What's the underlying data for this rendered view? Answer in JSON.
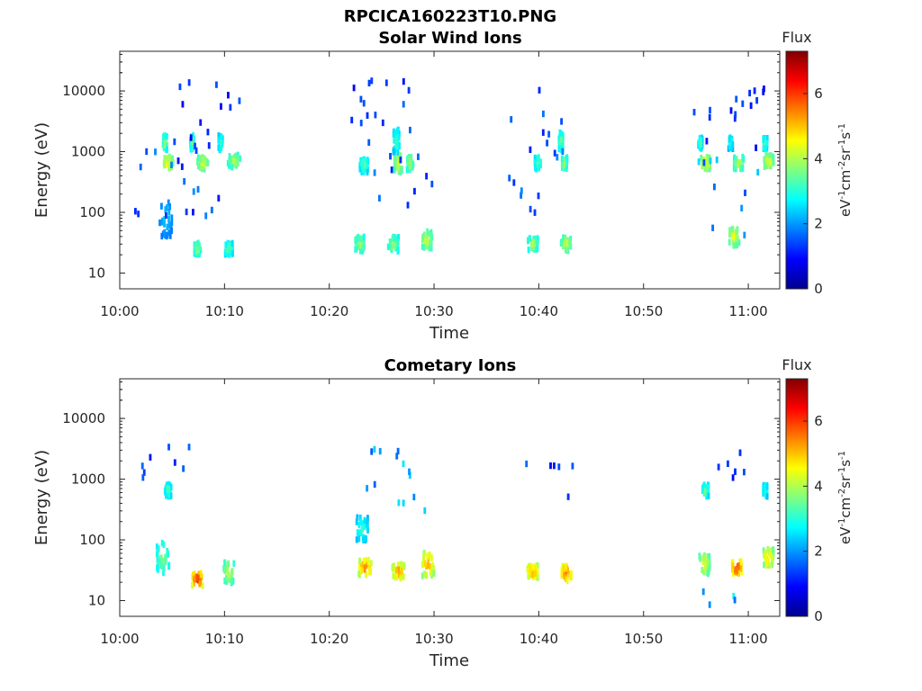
{
  "figure_title": "RPCICA160223T10.PNG",
  "chart_data": [
    {
      "type": "heatmap",
      "title": "Solar Wind Ions",
      "xlabel": "Time",
      "ylabel": "Energy (eV)",
      "x_range_minutes": [
        0,
        63
      ],
      "y_range": [
        5.5,
        45000
      ],
      "y_scale": "log",
      "x_ticks": [
        {
          "value": 0,
          "label": "10:00"
        },
        {
          "value": 10,
          "label": "10:10"
        },
        {
          "value": 20,
          "label": "10:20"
        },
        {
          "value": 30,
          "label": "10:30"
        },
        {
          "value": 40,
          "label": "10:40"
        },
        {
          "value": 50,
          "label": "10:50"
        },
        {
          "value": 60,
          "label": "11:00"
        }
      ],
      "y_ticks": [
        {
          "value": 10,
          "label": "10"
        },
        {
          "value": 100,
          "label": "100"
        },
        {
          "value": 1000,
          "label": "1000"
        },
        {
          "value": 10000,
          "label": "10000"
        }
      ],
      "colorbar": {
        "title": "Flux",
        "label": "eV-1cm-2sr-1s-1",
        "range": [
          0,
          7.3
        ],
        "ticks": [
          {
            "value": 0,
            "label": "0"
          },
          {
            "value": 2,
            "label": "2"
          },
          {
            "value": 4,
            "label": "4"
          },
          {
            "value": 6,
            "label": "6"
          }
        ]
      },
      "clusters": [
        {
          "t": 4.5,
          "e": 650,
          "v": 4.8,
          "w": 0.5,
          "h": 0.1
        },
        {
          "t": 7.8,
          "e": 650,
          "v": 4.5,
          "w": 0.5,
          "h": 0.1
        },
        {
          "t": 10.8,
          "e": 700,
          "v": 4.2,
          "w": 0.6,
          "h": 0.1
        },
        {
          "t": 4.2,
          "e": 1400,
          "v": 4.0,
          "w": 0.2,
          "h": 0.12
        },
        {
          "t": 6.8,
          "e": 1400,
          "v": 3.8,
          "w": 0.2,
          "h": 0.12
        },
        {
          "t": 9.5,
          "e": 1400,
          "v": 3.5,
          "w": 0.2,
          "h": 0.12
        },
        {
          "t": 7.3,
          "e": 25,
          "v": 4.0,
          "w": 0.3,
          "h": 0.1
        },
        {
          "t": 10.3,
          "e": 25,
          "v": 3.6,
          "w": 0.4,
          "h": 0.1
        },
        {
          "t": 4.3,
          "e": 80,
          "v": 2.5,
          "w": 0.6,
          "h": 0.3
        },
        {
          "t": 22.8,
          "e": 30,
          "v": 4.1,
          "w": 0.5,
          "h": 0.12
        },
        {
          "t": 26.0,
          "e": 30,
          "v": 4.0,
          "w": 0.5,
          "h": 0.12
        },
        {
          "t": 29.2,
          "e": 35,
          "v": 4.4,
          "w": 0.5,
          "h": 0.15
        },
        {
          "t": 23.2,
          "e": 600,
          "v": 3.5,
          "w": 0.4,
          "h": 0.12
        },
        {
          "t": 26.5,
          "e": 650,
          "v": 4.6,
          "w": 0.4,
          "h": 0.15
        },
        {
          "t": 27.6,
          "e": 650,
          "v": 4.2,
          "w": 0.3,
          "h": 0.12
        },
        {
          "t": 26.3,
          "e": 1500,
          "v": 3.4,
          "w": 0.3,
          "h": 0.2
        },
        {
          "t": 39.3,
          "e": 30,
          "v": 4.1,
          "w": 0.5,
          "h": 0.1
        },
        {
          "t": 42.5,
          "e": 30,
          "v": 4.3,
          "w": 0.5,
          "h": 0.12
        },
        {
          "t": 39.8,
          "e": 650,
          "v": 3.7,
          "w": 0.3,
          "h": 0.1
        },
        {
          "t": 42.3,
          "e": 650,
          "v": 4.0,
          "w": 0.3,
          "h": 0.1
        },
        {
          "t": 42.0,
          "e": 1500,
          "v": 3.7,
          "w": 0.2,
          "h": 0.15
        },
        {
          "t": 55.8,
          "e": 650,
          "v": 4.8,
          "w": 0.5,
          "h": 0.1
        },
        {
          "t": 59.0,
          "e": 650,
          "v": 4.3,
          "w": 0.5,
          "h": 0.1
        },
        {
          "t": 61.8,
          "e": 700,
          "v": 4.6,
          "w": 0.5,
          "h": 0.1
        },
        {
          "t": 58.5,
          "e": 40,
          "v": 4.6,
          "w": 0.5,
          "h": 0.15
        },
        {
          "t": 55.3,
          "e": 1400,
          "v": 3.4,
          "w": 0.2,
          "h": 0.1
        },
        {
          "t": 58.2,
          "e": 1400,
          "v": 3.2,
          "w": 0.2,
          "h": 0.1
        },
        {
          "t": 61.5,
          "e": 1400,
          "v": 3.6,
          "w": 0.2,
          "h": 0.1
        }
      ],
      "scatter": [
        {
          "t": 3.5,
          "e": 300,
          "v": 1.5,
          "n": 10,
          "wt": 2.5,
          "we": 0.7
        },
        {
          "t": 8.5,
          "e": 3500,
          "v": 1.2,
          "n": 14,
          "wt": 3,
          "we": 0.6
        },
        {
          "t": 7.5,
          "e": 250,
          "v": 1.5,
          "n": 8,
          "wt": 2,
          "we": 0.5
        },
        {
          "t": 25,
          "e": 4000,
          "v": 1.3,
          "n": 16,
          "wt": 3,
          "we": 0.6
        },
        {
          "t": 27,
          "e": 300,
          "v": 1.6,
          "n": 10,
          "wt": 3,
          "we": 0.5
        },
        {
          "t": 40,
          "e": 3500,
          "v": 1.4,
          "n": 10,
          "wt": 3,
          "we": 0.6
        },
        {
          "t": 40,
          "e": 300,
          "v": 1.5,
          "n": 8,
          "wt": 3,
          "we": 0.5
        },
        {
          "t": 58,
          "e": 4000,
          "v": 1.2,
          "n": 16,
          "wt": 4,
          "we": 0.6
        },
        {
          "t": 57,
          "e": 200,
          "v": 2.0,
          "n": 10,
          "wt": 4,
          "we": 0.7
        }
      ]
    },
    {
      "type": "heatmap",
      "title": "Cometary Ions",
      "xlabel": "Time",
      "ylabel": "Energy (eV)",
      "x_range_minutes": [
        0,
        63
      ],
      "y_range": [
        5.5,
        45000
      ],
      "y_scale": "log",
      "x_ticks": [
        {
          "value": 0,
          "label": "10:00"
        },
        {
          "value": 10,
          "label": "10:10"
        },
        {
          "value": 20,
          "label": "10:20"
        },
        {
          "value": 30,
          "label": "10:30"
        },
        {
          "value": 40,
          "label": "10:40"
        },
        {
          "value": 50,
          "label": "10:50"
        },
        {
          "value": 60,
          "label": "11:00"
        }
      ],
      "y_ticks": [
        {
          "value": 10,
          "label": "10"
        },
        {
          "value": 100,
          "label": "100"
        },
        {
          "value": 1000,
          "label": "1000"
        },
        {
          "value": 10000,
          "label": "10000"
        }
      ],
      "colorbar": {
        "title": "Flux",
        "label": "eV-1cm-2sr-1s-1",
        "range": [
          0,
          7.3
        ],
        "ticks": [
          {
            "value": 0,
            "label": "0"
          },
          {
            "value": 2,
            "label": "2"
          },
          {
            "value": 4,
            "label": "4"
          },
          {
            "value": 6,
            "label": "6"
          }
        ]
      },
      "clusters": [
        {
          "t": 4.0,
          "e": 50,
          "v": 3.8,
          "w": 0.6,
          "h": 0.25
        },
        {
          "t": 7.3,
          "e": 22,
          "v": 6.3,
          "w": 0.5,
          "h": 0.12
        },
        {
          "t": 10.3,
          "e": 30,
          "v": 4.3,
          "w": 0.5,
          "h": 0.2
        },
        {
          "t": 4.5,
          "e": 650,
          "v": 3.5,
          "w": 0.3,
          "h": 0.1
        },
        {
          "t": 23.3,
          "e": 35,
          "v": 5.8,
          "w": 0.6,
          "h": 0.12
        },
        {
          "t": 26.5,
          "e": 30,
          "v": 5.6,
          "w": 0.6,
          "h": 0.12
        },
        {
          "t": 29.3,
          "e": 40,
          "v": 5.4,
          "w": 0.6,
          "h": 0.2
        },
        {
          "t": 23.0,
          "e": 150,
          "v": 3.2,
          "w": 0.6,
          "h": 0.2
        },
        {
          "t": 39.3,
          "e": 30,
          "v": 5.7,
          "w": 0.5,
          "h": 0.1
        },
        {
          "t": 42.5,
          "e": 28,
          "v": 6.0,
          "w": 0.5,
          "h": 0.12
        },
        {
          "t": 55.7,
          "e": 40,
          "v": 4.6,
          "w": 0.5,
          "h": 0.18
        },
        {
          "t": 58.8,
          "e": 35,
          "v": 6.2,
          "w": 0.5,
          "h": 0.12
        },
        {
          "t": 61.8,
          "e": 50,
          "v": 5.1,
          "w": 0.5,
          "h": 0.15
        },
        {
          "t": 55.8,
          "e": 650,
          "v": 3.7,
          "w": 0.3,
          "h": 0.1
        },
        {
          "t": 61.5,
          "e": 650,
          "v": 3.5,
          "w": 0.2,
          "h": 0.1
        }
      ],
      "scatter": [
        {
          "t": 5,
          "e": 1800,
          "v": 1.3,
          "n": 8,
          "wt": 3,
          "we": 0.3
        },
        {
          "t": 26,
          "e": 800,
          "v": 2.0,
          "n": 14,
          "wt": 3,
          "we": 0.6
        },
        {
          "t": 41,
          "e": 1200,
          "v": 1.3,
          "n": 6,
          "wt": 3,
          "we": 0.5
        },
        {
          "t": 58,
          "e": 1500,
          "v": 1.2,
          "n": 6,
          "wt": 3,
          "we": 0.3
        },
        {
          "t": 58,
          "e": 9,
          "v": 2.4,
          "n": 4,
          "wt": 3,
          "we": 0.2
        }
      ]
    }
  ]
}
